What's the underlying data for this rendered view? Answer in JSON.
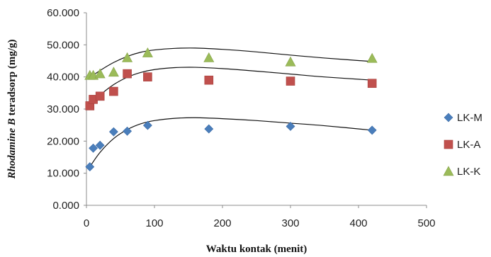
{
  "chart_data": {
    "type": "scatter",
    "title": "",
    "xlabel": "Waktu kontak (menit)",
    "ylabel_italic": "Rhodamine B",
    "ylabel_rest": " teradsorp (mg/g)",
    "xlim": [
      0,
      500
    ],
    "ylim": [
      0,
      60
    ],
    "x_ticks": [
      0,
      100,
      200,
      300,
      400,
      500
    ],
    "x_tick_labels": [
      "0",
      "100",
      "200",
      "300",
      "400",
      "500"
    ],
    "y_ticks": [
      0,
      10,
      20,
      30,
      40,
      50,
      60
    ],
    "y_tick_labels": [
      "0.000",
      "10.000",
      "20.000",
      "30.000",
      "40.000",
      "50.000",
      "60.000"
    ],
    "grid": false,
    "legend_position": "right",
    "series": [
      {
        "name": "LK-M",
        "marker": "diamond",
        "color": "#4a7ebb",
        "x": [
          5,
          10,
          20,
          40,
          60,
          90,
          180,
          300,
          420
        ],
        "y": [
          12.0,
          17.8,
          18.7,
          22.9,
          23.1,
          24.9,
          23.8,
          24.6,
          23.4
        ],
        "trend": [
          [
            5,
            12.0
          ],
          [
            20,
            16.5
          ],
          [
            40,
            20.8
          ],
          [
            60,
            23.6
          ],
          [
            80,
            25.4
          ],
          [
            100,
            26.4
          ],
          [
            130,
            27.1
          ],
          [
            160,
            27.3
          ],
          [
            200,
            27.0
          ],
          [
            250,
            26.4
          ],
          [
            300,
            25.6
          ],
          [
            350,
            24.8
          ],
          [
            420,
            23.4
          ]
        ]
      },
      {
        "name": "LK-A",
        "marker": "square",
        "color": "#c0504d",
        "x": [
          5,
          10,
          20,
          40,
          60,
          90,
          180,
          300,
          420
        ],
        "y": [
          31.0,
          33.0,
          34.0,
          35.5,
          41.0,
          40.0,
          39.0,
          38.7,
          38.0
        ],
        "trend": [
          [
            5,
            30.8
          ],
          [
            20,
            34.3
          ],
          [
            40,
            37.6
          ],
          [
            60,
            39.9
          ],
          [
            80,
            41.4
          ],
          [
            100,
            42.3
          ],
          [
            130,
            42.9
          ],
          [
            160,
            43.0
          ],
          [
            200,
            42.6
          ],
          [
            250,
            41.8
          ],
          [
            300,
            40.9
          ],
          [
            350,
            40.0
          ],
          [
            420,
            39.0
          ]
        ]
      },
      {
        "name": "LK-K",
        "marker": "triangle",
        "color": "#9bbb59",
        "x": [
          5,
          10,
          20,
          40,
          60,
          90,
          180,
          300,
          420
        ],
        "y": [
          40.5,
          40.5,
          41.0,
          41.5,
          46.0,
          47.5,
          46.0,
          44.7,
          45.8
        ],
        "trend": [
          [
            5,
            39.8
          ],
          [
            20,
            42.0
          ],
          [
            40,
            44.5
          ],
          [
            60,
            46.4
          ],
          [
            80,
            47.7
          ],
          [
            100,
            48.4
          ],
          [
            130,
            48.9
          ],
          [
            160,
            49.0
          ],
          [
            200,
            48.6
          ],
          [
            250,
            47.8
          ],
          [
            300,
            46.8
          ],
          [
            350,
            45.9
          ],
          [
            420,
            44.8
          ]
        ]
      }
    ]
  }
}
